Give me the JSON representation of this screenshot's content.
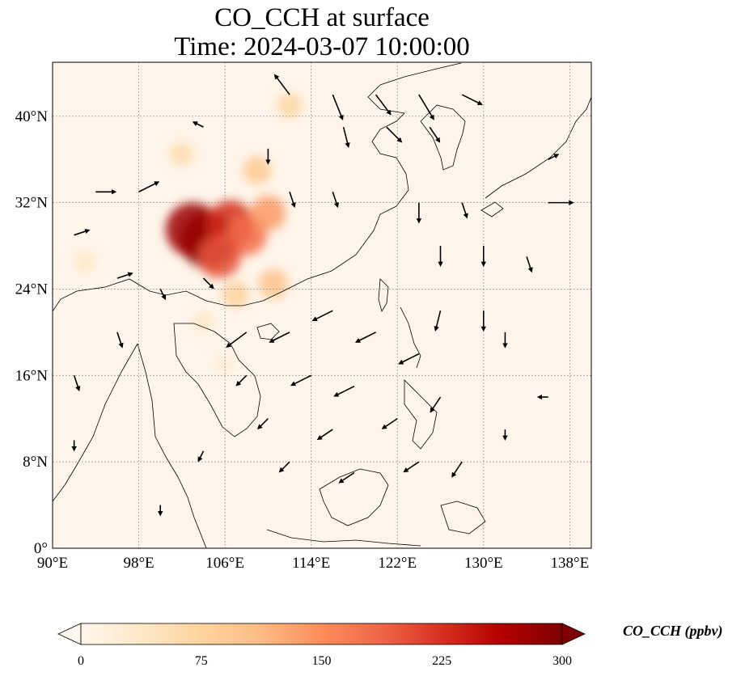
{
  "title": {
    "line1": "CO_CCH at surface",
    "line2": "Time: 2024-03-07 10:00:00"
  },
  "axes": {
    "lon_ticks": [
      "90°E",
      "98°E",
      "106°E",
      "114°E",
      "122°E",
      "130°E",
      "138°E"
    ],
    "lat_ticks": [
      "0°",
      "8°N",
      "16°N",
      "24°N",
      "32°N",
      "40°N"
    ],
    "lon_values": [
      90,
      98,
      106,
      114,
      122,
      130,
      138
    ],
    "lat_values": [
      0,
      8,
      16,
      24,
      32,
      40
    ],
    "lon_range": [
      90,
      140
    ],
    "lat_range": [
      0,
      45
    ],
    "gridlines": "dotted"
  },
  "colorbar": {
    "label": "CO_CCH (ppbv)",
    "ticks": [
      "0",
      "75",
      "150",
      "225",
      "300"
    ],
    "tick_values": [
      0,
      75,
      150,
      225,
      300
    ],
    "range": [
      0,
      300
    ],
    "colormap": "OrRd",
    "extend": "both"
  },
  "chart_data": {
    "type": "heatmap",
    "variable": "CO_CCH",
    "units": "ppbv",
    "level": "surface",
    "time": "2024-03-07 10:00:00",
    "background_value": 5,
    "hotspots": [
      {
        "lon": 104.5,
        "lat": 28.5,
        "value": 300
      },
      {
        "lon": 103.0,
        "lat": 29.5,
        "value": 280
      },
      {
        "lon": 106.5,
        "lat": 30.0,
        "value": 230
      },
      {
        "lon": 108.0,
        "lat": 29.0,
        "value": 180
      },
      {
        "lon": 105.5,
        "lat": 27.0,
        "value": 200
      },
      {
        "lon": 110.0,
        "lat": 31.0,
        "value": 140
      },
      {
        "lon": 109.0,
        "lat": 35.0,
        "value": 90
      },
      {
        "lon": 102.0,
        "lat": 36.5,
        "value": 60
      },
      {
        "lon": 112.0,
        "lat": 41.0,
        "value": 70
      },
      {
        "lon": 110.5,
        "lat": 24.5,
        "value": 100
      },
      {
        "lon": 107.0,
        "lat": 23.5,
        "value": 80
      },
      {
        "lon": 93.0,
        "lat": 26.5,
        "value": 40
      },
      {
        "lon": 104.0,
        "lat": 21.0,
        "value": 40
      },
      {
        "lon": 106.0,
        "lat": 17.0,
        "value": 25
      }
    ],
    "wind_vectors": [
      {
        "lon": 112,
        "lat": 42,
        "u": -3,
        "v": 4
      },
      {
        "lon": 116,
        "lat": 42,
        "u": 2,
        "v": -5
      },
      {
        "lon": 120,
        "lat": 42,
        "u": 3,
        "v": -4
      },
      {
        "lon": 124,
        "lat": 42,
        "u": 3,
        "v": -5
      },
      {
        "lon": 128,
        "lat": 42,
        "u": 4,
        "v": -2
      },
      {
        "lon": 117,
        "lat": 39,
        "u": 1,
        "v": -4
      },
      {
        "lon": 121,
        "lat": 39,
        "u": 3,
        "v": -3
      },
      {
        "lon": 125,
        "lat": 39,
        "u": 2,
        "v": -3
      },
      {
        "lon": 94,
        "lat": 33,
        "u": 4,
        "v": 0
      },
      {
        "lon": 98,
        "lat": 33,
        "u": 4,
        "v": 2
      },
      {
        "lon": 112,
        "lat": 33,
        "u": 1,
        "v": -3
      },
      {
        "lon": 116,
        "lat": 33,
        "u": 1,
        "v": -3
      },
      {
        "lon": 124,
        "lat": 32,
        "u": 0,
        "v": -4
      },
      {
        "lon": 128,
        "lat": 32,
        "u": 1,
        "v": -3
      },
      {
        "lon": 136,
        "lat": 32,
        "u": 5,
        "v": 0
      },
      {
        "lon": 126,
        "lat": 28,
        "u": 0,
        "v": -4
      },
      {
        "lon": 130,
        "lat": 28,
        "u": 0,
        "v": -4
      },
      {
        "lon": 134,
        "lat": 27,
        "u": 1,
        "v": -3
      },
      {
        "lon": 116,
        "lat": 22,
        "u": -4,
        "v": -2
      },
      {
        "lon": 112,
        "lat": 20,
        "u": -4,
        "v": -2
      },
      {
        "lon": 108,
        "lat": 20,
        "u": -4,
        "v": -3
      },
      {
        "lon": 120,
        "lat": 20,
        "u": -4,
        "v": -2
      },
      {
        "lon": 124,
        "lat": 18,
        "u": -4,
        "v": -2
      },
      {
        "lon": 126,
        "lat": 22,
        "u": -1,
        "v": -4
      },
      {
        "lon": 130,
        "lat": 22,
        "u": 0,
        "v": -4
      },
      {
        "lon": 132,
        "lat": 20,
        "u": 0,
        "v": -3
      },
      {
        "lon": 114,
        "lat": 16,
        "u": -4,
        "v": -2
      },
      {
        "lon": 118,
        "lat": 15,
        "u": -4,
        "v": -2
      },
      {
        "lon": 122,
        "lat": 12,
        "u": -3,
        "v": -2
      },
      {
        "lon": 116,
        "lat": 11,
        "u": -3,
        "v": -2
      },
      {
        "lon": 110,
        "lat": 12,
        "u": -2,
        "v": -2
      },
      {
        "lon": 112,
        "lat": 8,
        "u": -2,
        "v": -2
      },
      {
        "lon": 118,
        "lat": 7,
        "u": -3,
        "v": -2
      },
      {
        "lon": 124,
        "lat": 8,
        "u": -3,
        "v": -2
      },
      {
        "lon": 126,
        "lat": 14,
        "u": -2,
        "v": -3
      },
      {
        "lon": 128,
        "lat": 8,
        "u": -2,
        "v": -3
      },
      {
        "lon": 104,
        "lat": 9,
        "u": -1,
        "v": -2
      },
      {
        "lon": 96,
        "lat": 20,
        "u": 1,
        "v": -3
      },
      {
        "lon": 92,
        "lat": 16,
        "u": 1,
        "v": -3
      },
      {
        "lon": 92,
        "lat": 10,
        "u": 0,
        "v": -2
      },
      {
        "lon": 100,
        "lat": 24,
        "u": 1,
        "v": -2
      },
      {
        "lon": 96,
        "lat": 25,
        "u": 3,
        "v": 1
      },
      {
        "lon": 92,
        "lat": 29,
        "u": 3,
        "v": 1
      },
      {
        "lon": 110,
        "lat": 37,
        "u": 0,
        "v": -3
      },
      {
        "lon": 104,
        "lat": 39,
        "u": -2,
        "v": 1
      },
      {
        "lon": 136,
        "lat": 14,
        "u": -2,
        "v": 0
      },
      {
        "lon": 104,
        "lat": 25,
        "u": 2,
        "v": -2
      },
      {
        "lon": 108,
        "lat": 16,
        "u": -2,
        "v": -2
      },
      {
        "lon": 132,
        "lat": 11,
        "u": 0,
        "v": -2
      },
      {
        "lon": 100,
        "lat": 4,
        "u": 0,
        "v": -2
      },
      {
        "lon": 136,
        "lat": 36,
        "u": 2,
        "v": 1
      }
    ]
  }
}
